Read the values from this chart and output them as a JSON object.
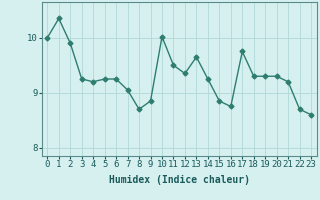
{
  "x": [
    0,
    1,
    2,
    3,
    4,
    5,
    6,
    7,
    8,
    9,
    10,
    11,
    12,
    13,
    14,
    15,
    16,
    17,
    18,
    19,
    20,
    21,
    22,
    23
  ],
  "y": [
    10.0,
    10.35,
    9.9,
    9.25,
    9.2,
    9.25,
    9.25,
    9.05,
    8.7,
    8.85,
    10.02,
    9.5,
    9.35,
    9.65,
    9.25,
    8.85,
    8.75,
    9.75,
    9.3,
    9.3,
    9.3,
    9.2,
    8.7,
    8.6
  ],
  "line_color": "#2e7d6e",
  "marker": "D",
  "marker_size": 2.5,
  "bg_color": "#d6f0f0",
  "grid_color": "#b0d8d8",
  "xlabel": "Humidex (Indice chaleur)",
  "ylim": [
    7.85,
    10.65
  ],
  "xlim": [
    -0.5,
    23.5
  ],
  "yticks": [
    8,
    9,
    10
  ],
  "xticks": [
    0,
    1,
    2,
    3,
    4,
    5,
    6,
    7,
    8,
    9,
    10,
    11,
    12,
    13,
    14,
    15,
    16,
    17,
    18,
    19,
    20,
    21,
    22,
    23
  ],
  "xlabel_fontsize": 7,
  "tick_fontsize": 6.5,
  "line_width": 1.0
}
